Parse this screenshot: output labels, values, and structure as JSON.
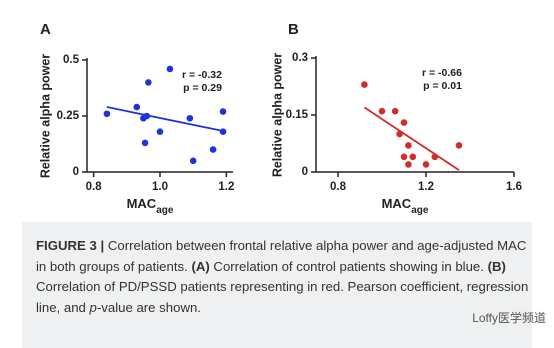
{
  "chart_data": [
    {
      "type": "scatter",
      "panel": "A",
      "ylabel": "Relative alpha power",
      "xlabel": "MAC",
      "xlabel_sub": "age",
      "x": [
        0.84,
        0.93,
        0.95,
        0.955,
        0.96,
        0.965,
        1.0,
        1.03,
        1.09,
        1.1,
        1.16,
        1.19,
        1.19
      ],
      "values": [
        0.26,
        0.29,
        0.24,
        0.13,
        0.25,
        0.4,
        0.18,
        0.46,
        0.24,
        0.05,
        0.1,
        0.18,
        0.27
      ],
      "color": "#1f33d9",
      "fit": {
        "x": [
          0.84,
          1.2
        ],
        "y": [
          0.29,
          0.18
        ]
      },
      "annotations": [
        "r = -0.32",
        "p = 0.29"
      ],
      "xlim": [
        0.78,
        1.22
      ],
      "ylim": [
        0,
        0.5
      ],
      "xticks": [
        0.8,
        {
          "value": 1,
          "label": "1.0"
        },
        1.2
      ],
      "yticks": [
        0,
        0.25,
        0.5
      ]
    },
    {
      "type": "scatter",
      "panel": "B",
      "ylabel": "Relative alpha power",
      "xlabel": "MAC",
      "xlabel_sub": "age",
      "x": [
        0.92,
        1.0,
        1.06,
        1.08,
        1.1,
        1.1,
        1.12,
        1.12,
        1.14,
        1.2,
        1.24,
        1.35
      ],
      "values": [
        0.23,
        0.16,
        0.16,
        0.1,
        0.13,
        0.04,
        0.07,
        0.02,
        0.04,
        0.02,
        0.04,
        0.07
      ],
      "color": "#d42a2a",
      "fit": {
        "x": [
          0.92,
          1.35
        ],
        "y": [
          0.17,
          0.005
        ]
      },
      "annotations": [
        "r = -0.66",
        "p = 0.01"
      ],
      "xlim": [
        0.7,
        1.6
      ],
      "ylim": [
        0,
        0.3
      ],
      "xticks": [
        0.8,
        1.2,
        1.6
      ],
      "yticks": [
        0,
        0.15,
        0.3
      ]
    }
  ],
  "caption": [
    {
      "text": "FIGURE 3 |",
      "style": "bold"
    },
    {
      "text": " Correlation between frontal relative alpha power and age-adjusted MAC in both groups of patients. "
    },
    {
      "text": "(A)",
      "style": "bold"
    },
    {
      "text": " Correlation of control patients showing in blue. "
    },
    {
      "text": "(B)",
      "style": "bold"
    },
    {
      "text": " Correlation of PD/PSSD patients representing in red. Pearson coefficient, regression line, and "
    },
    {
      "text": "p",
      "style": "italic"
    },
    {
      "text": "-value are shown."
    }
  ],
  "watermark": "Loffy医学频道"
}
